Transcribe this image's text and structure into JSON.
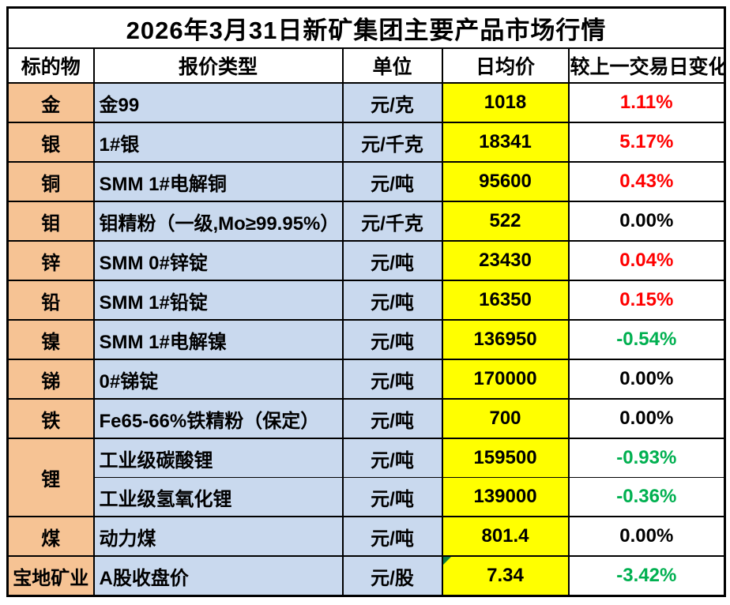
{
  "colors": {
    "orange": "#F6C394",
    "blue": "#C9D9EE",
    "yellow": "#FFFF00",
    "red": "#FF0000",
    "green": "#00B050",
    "black": "#000000",
    "border": "#000000",
    "note_marker": "#107C41",
    "background": "#FFFFFF"
  },
  "chart_data": {
    "type": "table",
    "title": "2026年3月31日新矿集团主要产品市场行情",
    "columns": [
      "标的物",
      "报价类型",
      "单位",
      "日均价",
      "较上一交易日变化"
    ],
    "rows": [
      {
        "target": "金",
        "quote": "金99",
        "unit": "元/克",
        "price": "1018",
        "change": "1.11%",
        "change_color": "red"
      },
      {
        "target": "银",
        "quote": "1#银",
        "unit": "元/千克",
        "price": "18341",
        "change": "5.17%",
        "change_color": "red"
      },
      {
        "target": "铜",
        "quote": "SMM 1#电解铜",
        "unit": "元/吨",
        "price": "95600",
        "change": "0.43%",
        "change_color": "red"
      },
      {
        "target": "钼",
        "quote": "钼精粉（一级,Mo≥99.95%）",
        "unit": "元/千克",
        "price": "522",
        "change": "0.00%",
        "change_color": "black"
      },
      {
        "target": "锌",
        "quote": "SMM 0#锌锭",
        "unit": "元/吨",
        "price": "23430",
        "change": "0.04%",
        "change_color": "red"
      },
      {
        "target": "铅",
        "quote": "SMM 1#铅锭",
        "unit": "元/吨",
        "price": "16350",
        "change": "0.15%",
        "change_color": "red"
      },
      {
        "target": "镍",
        "quote": "SMM 1#电解镍",
        "unit": "元/吨",
        "price": "136950",
        "change": "-0.54%",
        "change_color": "green"
      },
      {
        "target": "锑",
        "quote": "0#锑锭",
        "unit": "元/吨",
        "price": "170000",
        "change": "0.00%",
        "change_color": "black"
      },
      {
        "target": "铁",
        "quote": "Fe65-66%铁精粉（保定）",
        "unit": "元/吨",
        "price": "700",
        "change": "0.00%",
        "change_color": "black"
      },
      {
        "target": "锂",
        "target_rowspan": 2,
        "quote": "工业级碳酸锂",
        "unit": "元/吨",
        "price": "159500",
        "change": "-0.93%",
        "change_color": "green"
      },
      {
        "target": null,
        "sub_row": true,
        "quote": "工业级氢氧化锂",
        "unit": "元/吨",
        "price": "139000",
        "change": "-0.36%",
        "change_color": "green"
      },
      {
        "target": "煤",
        "quote": "动力煤",
        "unit": "元/吨",
        "price": "801.4",
        "change": "0.00%",
        "change_color": "black"
      },
      {
        "target": "宝地矿业",
        "quote": "A股收盘价",
        "unit": "元/股",
        "price": "7.34",
        "change": "-3.42%",
        "change_color": "green",
        "note_marker": true
      }
    ]
  }
}
